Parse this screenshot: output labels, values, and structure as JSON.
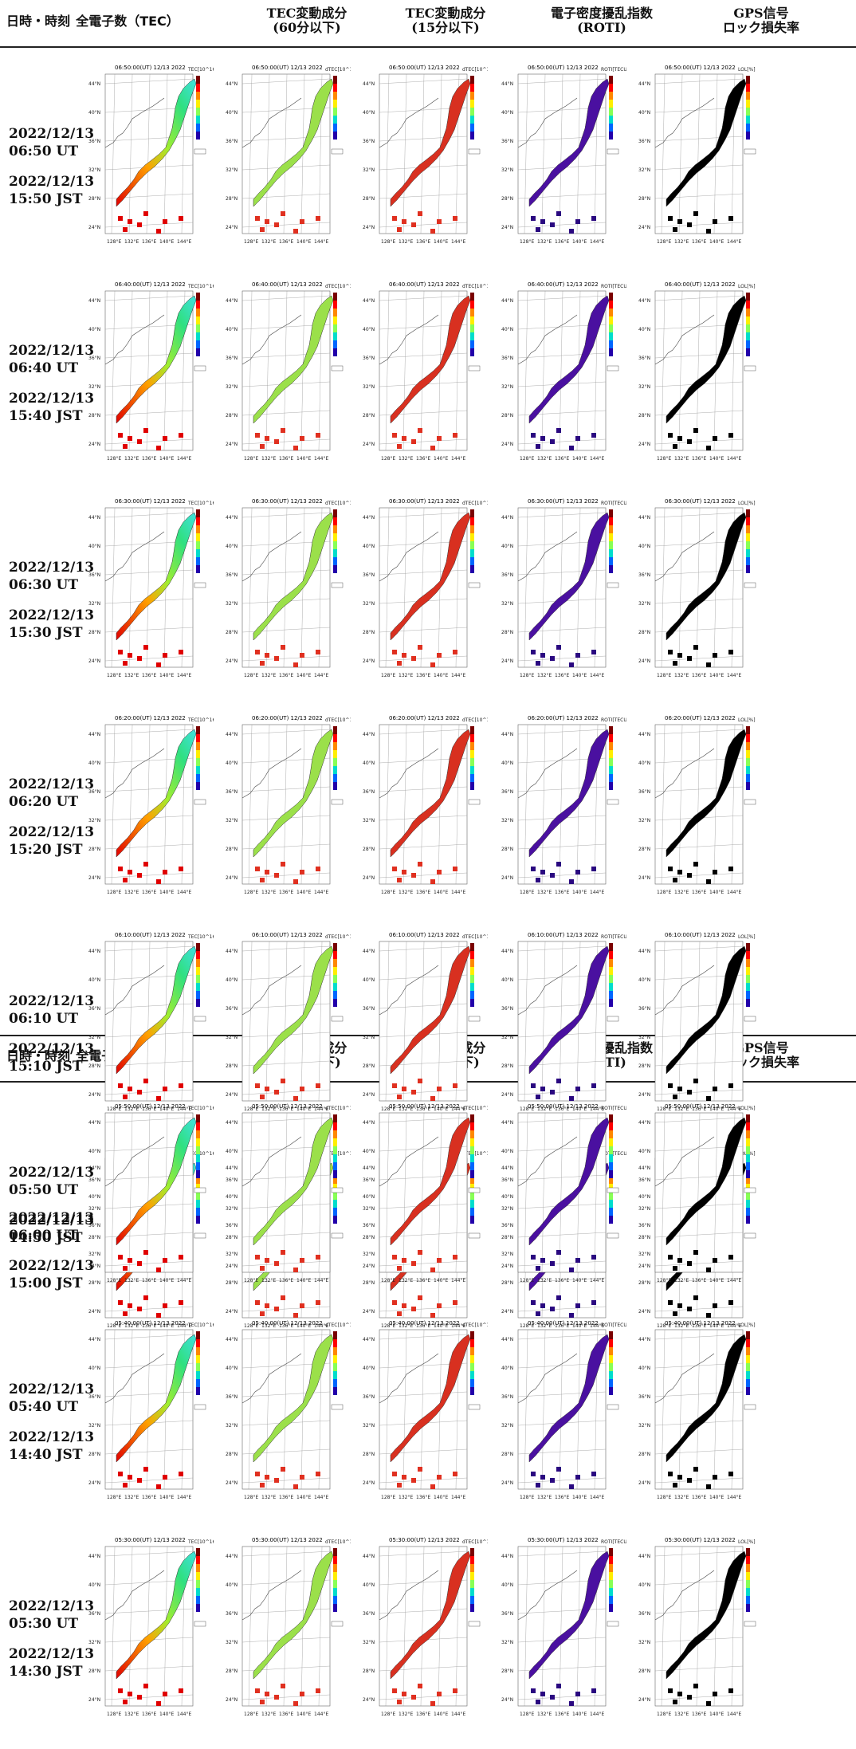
{
  "header": {
    "col_datetime": "日時・時刻",
    "col_tec": "全電子数（TEC）",
    "col_tec60_a": "TEC変動成分",
    "col_tec60_b": "(60分以下)",
    "col_tec15_a": "TEC変動成分",
    "col_tec15_b": "(15分以下)",
    "col_roti_a": "電子密度擾乱指数",
    "col_roti_b": "(ROTI)",
    "col_lol_a": "GPS信号",
    "col_lol_b": "ロック損失率"
  },
  "axes": {
    "lat": [
      "44°N",
      "40°N",
      "36°N",
      "32°N",
      "28°N",
      "24°N"
    ],
    "lon": [
      "128°E",
      "132°E",
      "136°E",
      "140°E",
      "144°E"
    ]
  },
  "map_date": "12/13 2022",
  "colorbar_units": [
    "TEC[10^16m^-2]",
    "dTEC[10^16m^-2]",
    "dTEC[10^16m^-2]",
    "ROTI[TECU/min]",
    "LOL[%]"
  ],
  "colors": {
    "rule": "#222222",
    "black": "#000000"
  },
  "rows": [
    {
      "ut_date": "2022/12/13",
      "ut_time": "06:50 UT",
      "jst_date": "2022/12/13",
      "jst_time": "15:50 JST",
      "map_time": "06:50:00(UT)"
    },
    {
      "ut_date": "2022/12/13",
      "ut_time": "06:40 UT",
      "jst_date": "2022/12/13",
      "jst_time": "15:40 JST",
      "map_time": "06:40:00(UT)"
    },
    {
      "ut_date": "2022/12/13",
      "ut_time": "06:30 UT",
      "jst_date": "2022/12/13",
      "jst_time": "15:30 JST",
      "map_time": "06:30:00(UT)"
    },
    {
      "ut_date": "2022/12/13",
      "ut_time": "06:20 UT",
      "jst_date": "2022/12/13",
      "jst_time": "15:20 JST",
      "map_time": "06:20:00(UT)"
    },
    {
      "ut_date": "2022/12/13",
      "ut_time": "06:10 UT",
      "jst_date": "2022/12/13",
      "jst_time": "15:10 JST",
      "map_time": "06:10:00(UT)"
    },
    {
      "ut_date": "2022/12/13",
      "ut_time": "06:00 UT",
      "jst_date": "2022/12/13",
      "jst_time": "15:00 JST",
      "map_time": "06:00:00(UT)"
    },
    {
      "ut_date": "2022/12/13",
      "ut_time": "05:50 UT",
      "jst_date": "2022/12/13",
      "jst_time": "14:50 JST",
      "map_time": "05:50:00(UT)"
    },
    {
      "ut_date": "2022/12/13",
      "ut_time": "05:40 UT",
      "jst_date": "2022/12/13",
      "jst_time": "14:40 JST",
      "map_time": "05:40:00(UT)"
    },
    {
      "ut_date": "2022/12/13",
      "ut_time": "05:30 UT",
      "jst_date": "2022/12/13",
      "jst_time": "14:30 JST",
      "map_time": "05:30:00(UT)"
    }
  ]
}
